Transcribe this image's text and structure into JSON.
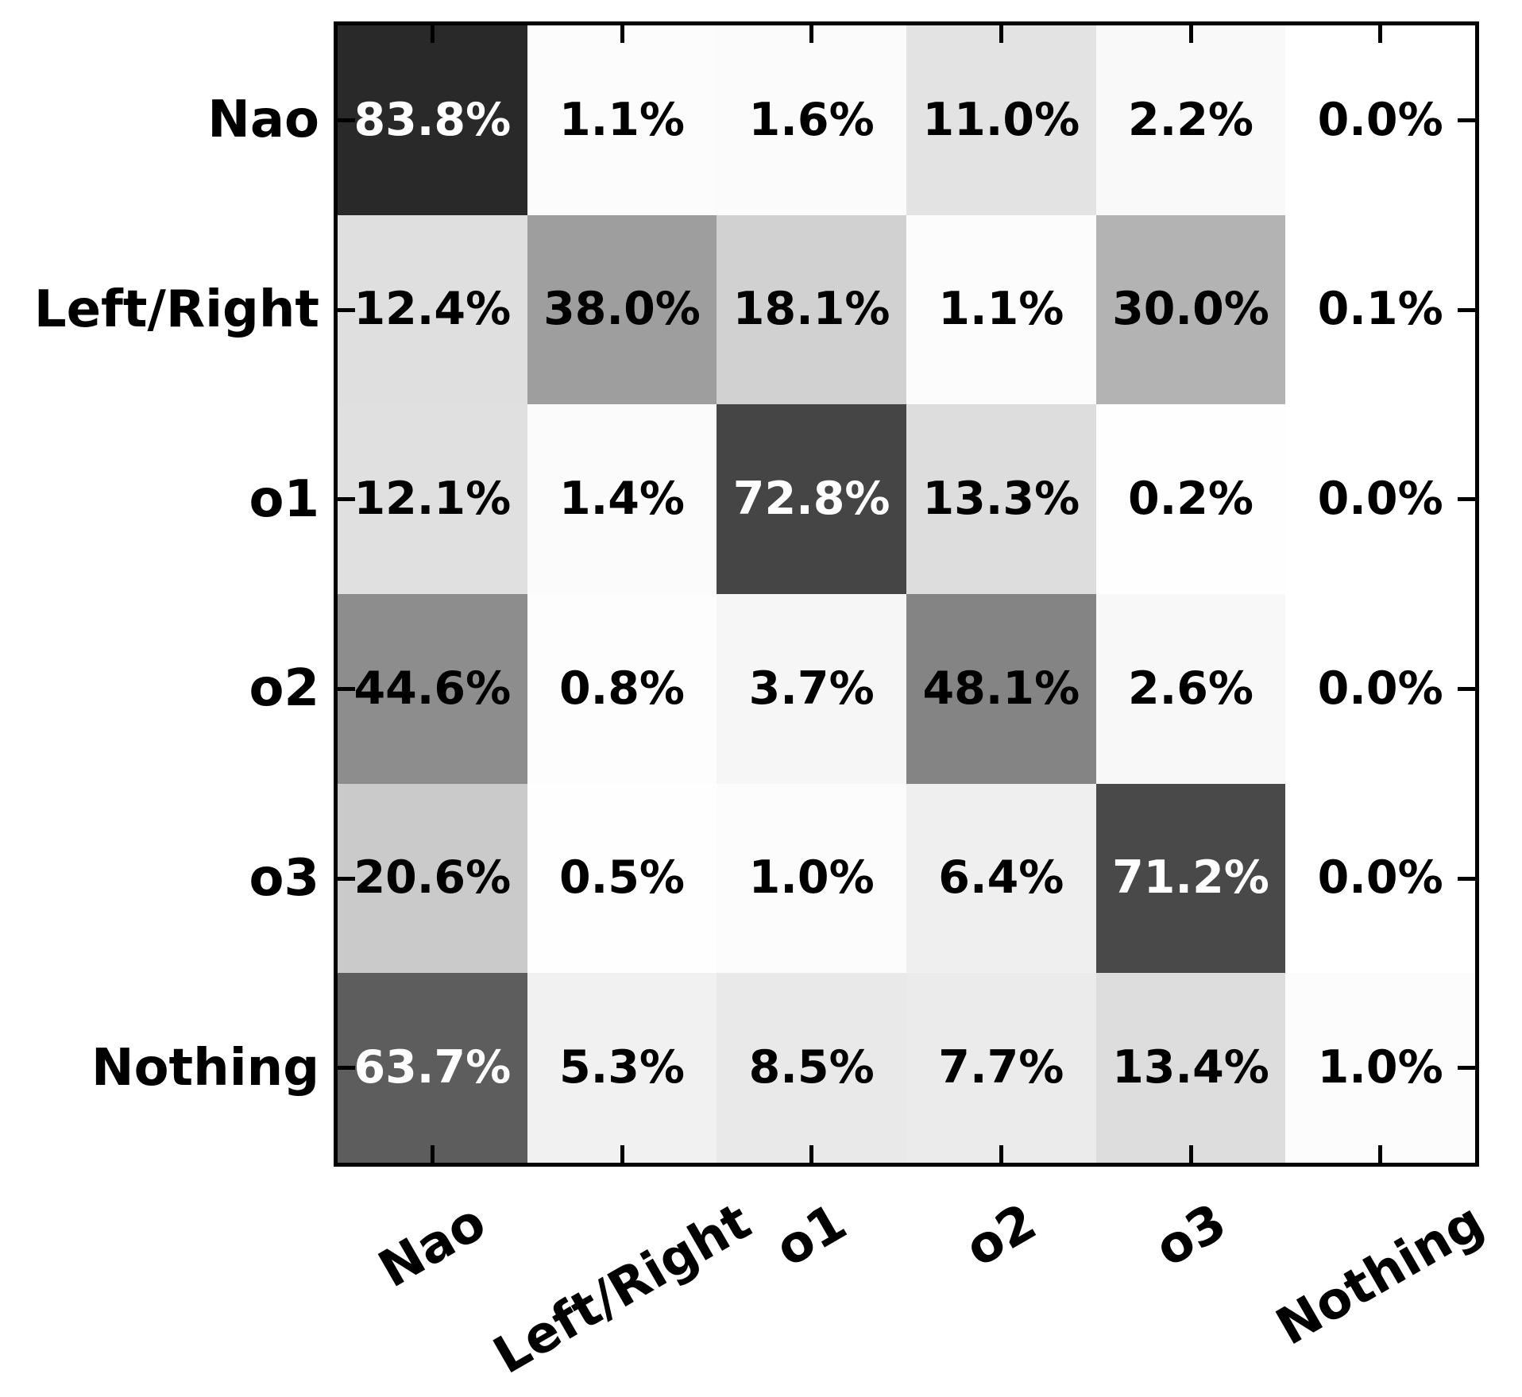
{
  "figure": {
    "background_color": "#ffffff",
    "frame_color": "#000000",
    "title": ""
  },
  "chart_data": {
    "type": "heatmap",
    "subtype": "confusion-matrix",
    "title": "",
    "xlabel": "",
    "ylabel": "",
    "row_labels": [
      "Nao",
      "Left/Right",
      "o1",
      "o2",
      "o3",
      "Nothing"
    ],
    "col_labels": [
      "Nao",
      "Left/Right",
      "o1",
      "o2",
      "o3",
      "Nothing"
    ],
    "values_percent": [
      [
        83.8,
        1.1,
        1.6,
        11.0,
        2.2,
        0.0
      ],
      [
        12.4,
        38.0,
        18.1,
        1.1,
        30.0,
        0.1
      ],
      [
        12.1,
        1.4,
        72.8,
        13.3,
        0.2,
        0.0
      ],
      [
        44.6,
        0.8,
        3.7,
        48.1,
        2.6,
        0.0
      ],
      [
        20.6,
        0.5,
        1.0,
        6.4,
        71.2,
        0.0
      ],
      [
        63.7,
        5.3,
        8.5,
        7.7,
        13.4,
        1.0
      ]
    ],
    "cell_label_suffix": "%",
    "colormap": {
      "name": "linear-greys",
      "vmin": 0,
      "vmax": 100,
      "low_color": "#ffffff",
      "high_color": "#000000"
    },
    "cell_text_colors": {
      "on_light_cells": "#000000",
      "on_dark_cells": "#ffffff",
      "dark_threshold_percent": 55
    },
    "x_tick_label_rotation_deg": 30,
    "ticks": "inward-all-sides",
    "grid": false,
    "legend": false,
    "colorbar": false
  }
}
